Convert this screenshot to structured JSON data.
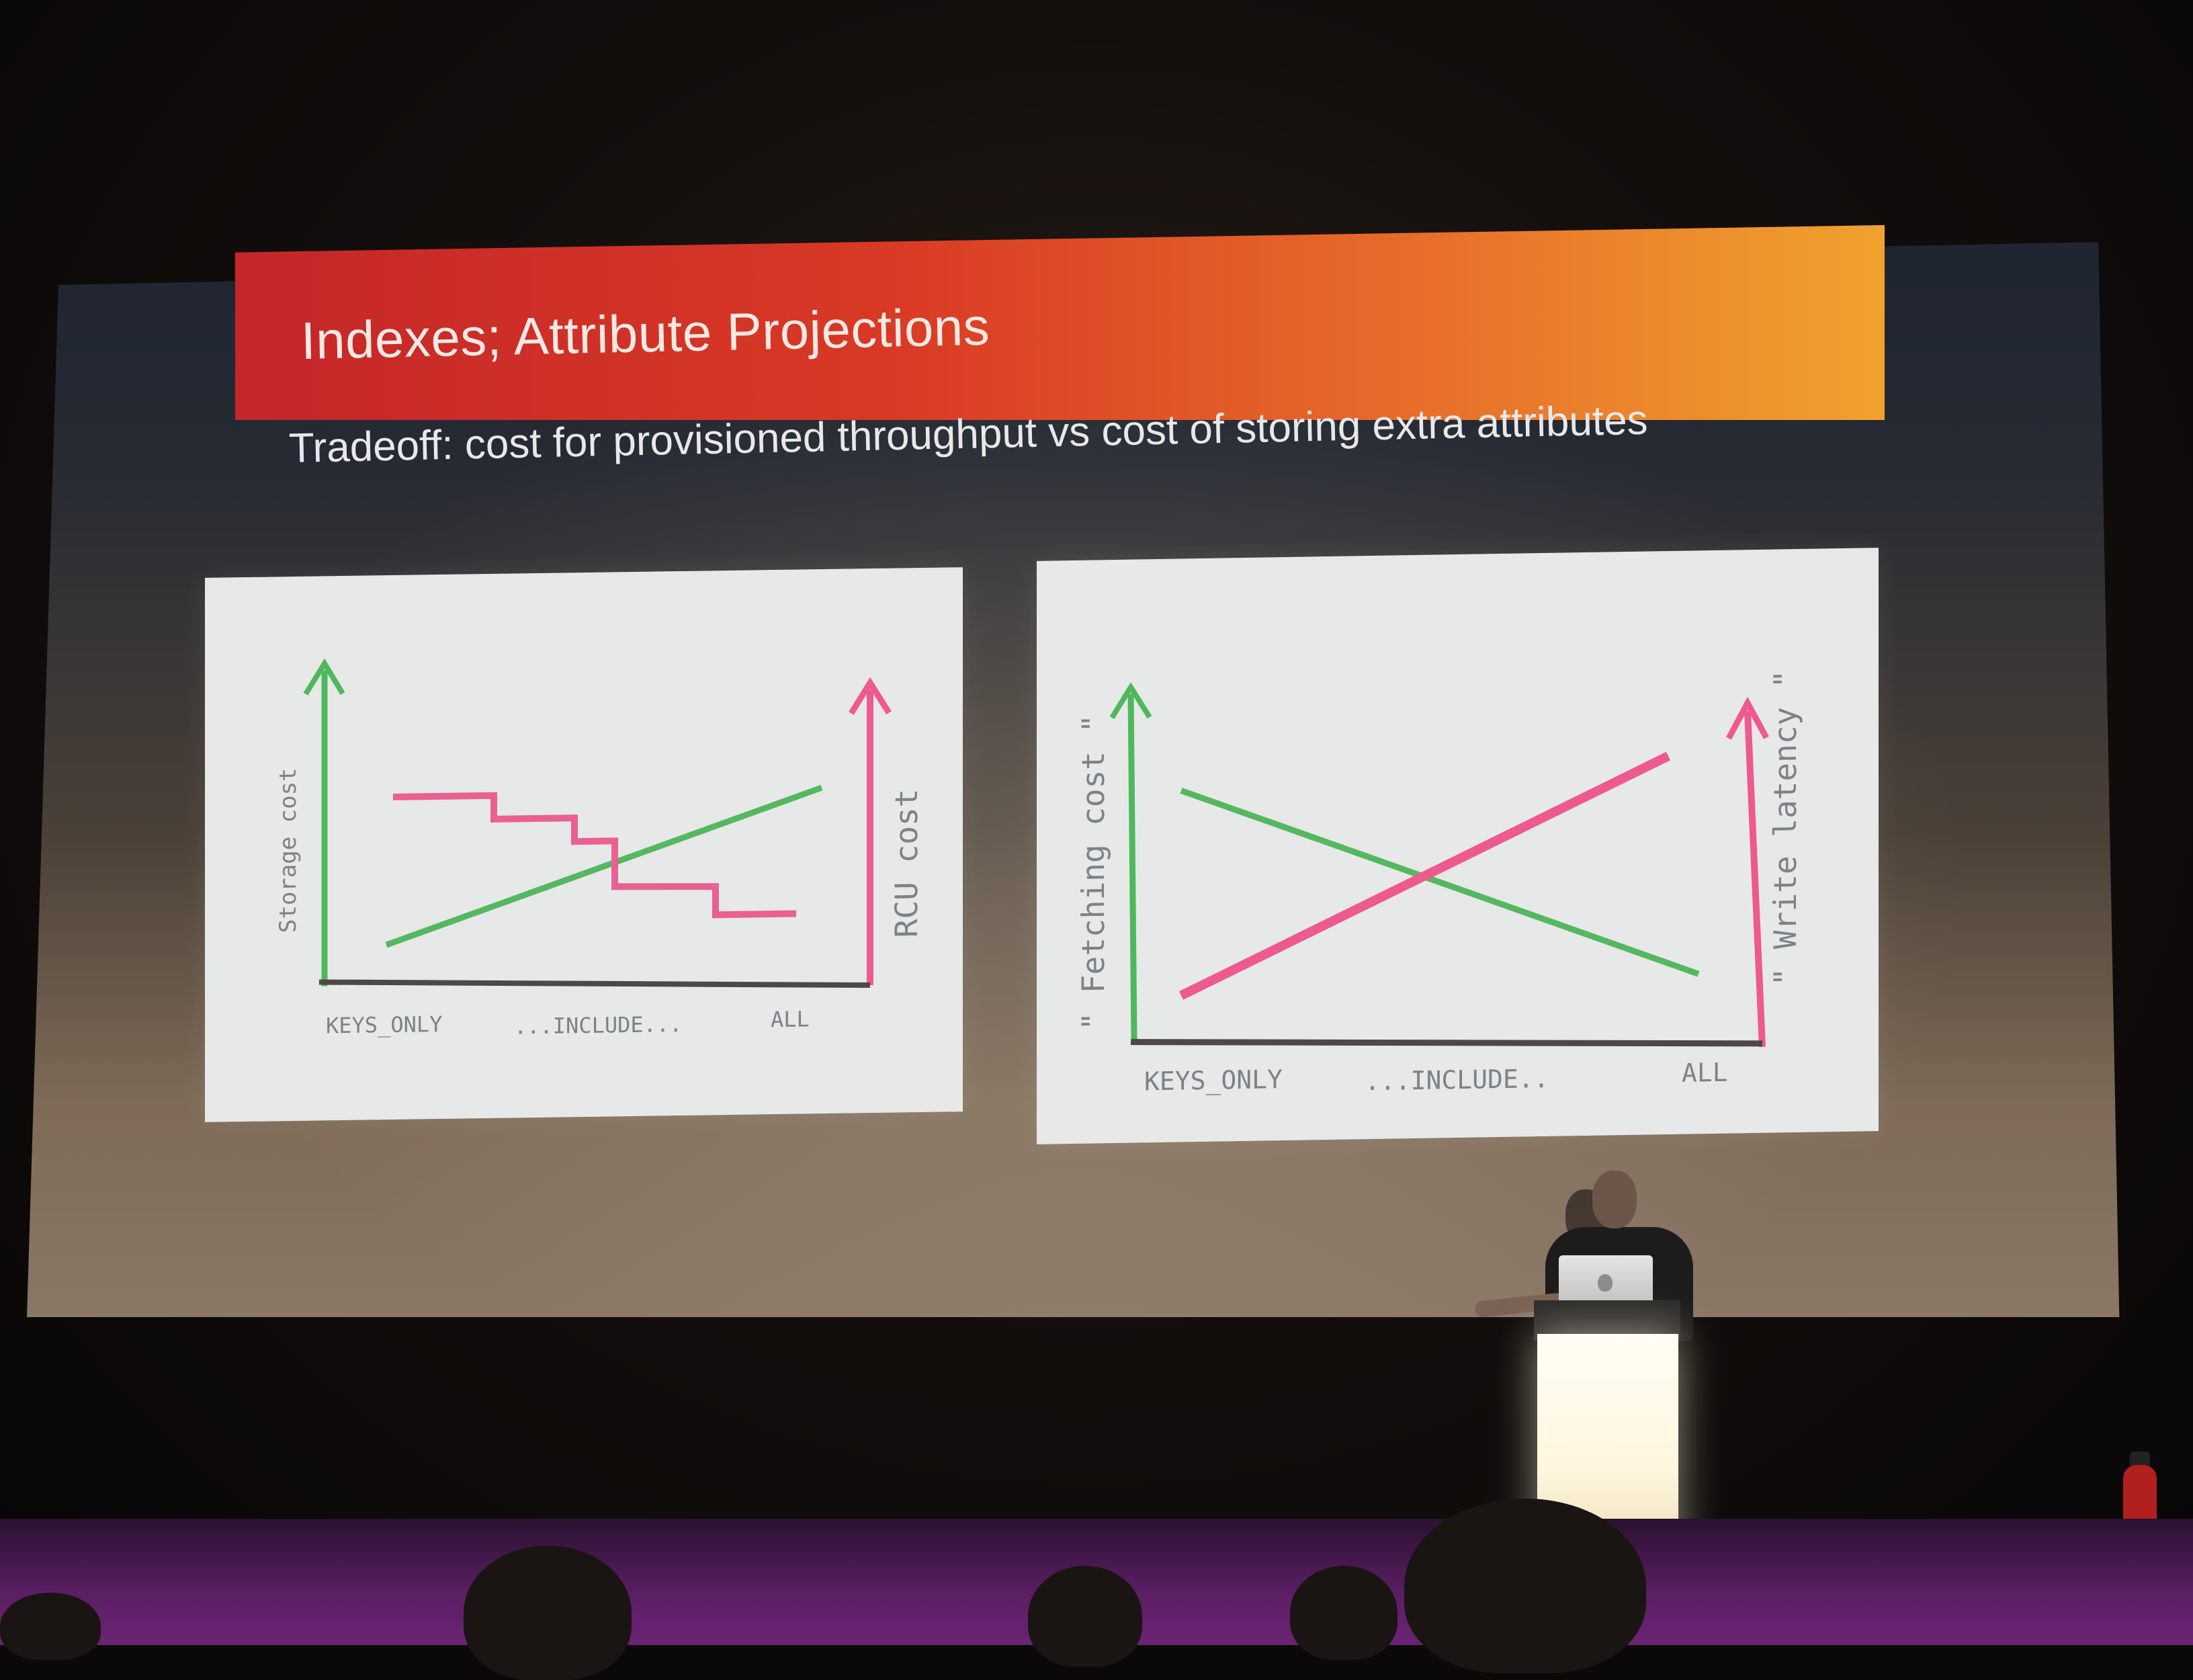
{
  "slide": {
    "title": "Indexes; Attribute Projections",
    "subtitle": "Tradeoff: cost for provisioned throughput vs cost of storing extra attributes"
  },
  "sketch_left": {
    "y_left_label": "Storage cost",
    "y_right_label": "RCU cost",
    "x_labels": [
      "KEYS_ONLY",
      "...INCLUDE...",
      "ALL"
    ]
  },
  "sketch_right": {
    "y_left_label": "\" Fetching cost \"",
    "y_right_label": "\" Write latency \"",
    "x_labels": [
      "KEYS_ONLY",
      "...INCLUDE..",
      "ALL"
    ]
  },
  "colors": {
    "green": "#4fb85e",
    "pink": "#ee5a8d",
    "title_bar_start": "#c4262a",
    "title_bar_end": "#f0a22e"
  }
}
